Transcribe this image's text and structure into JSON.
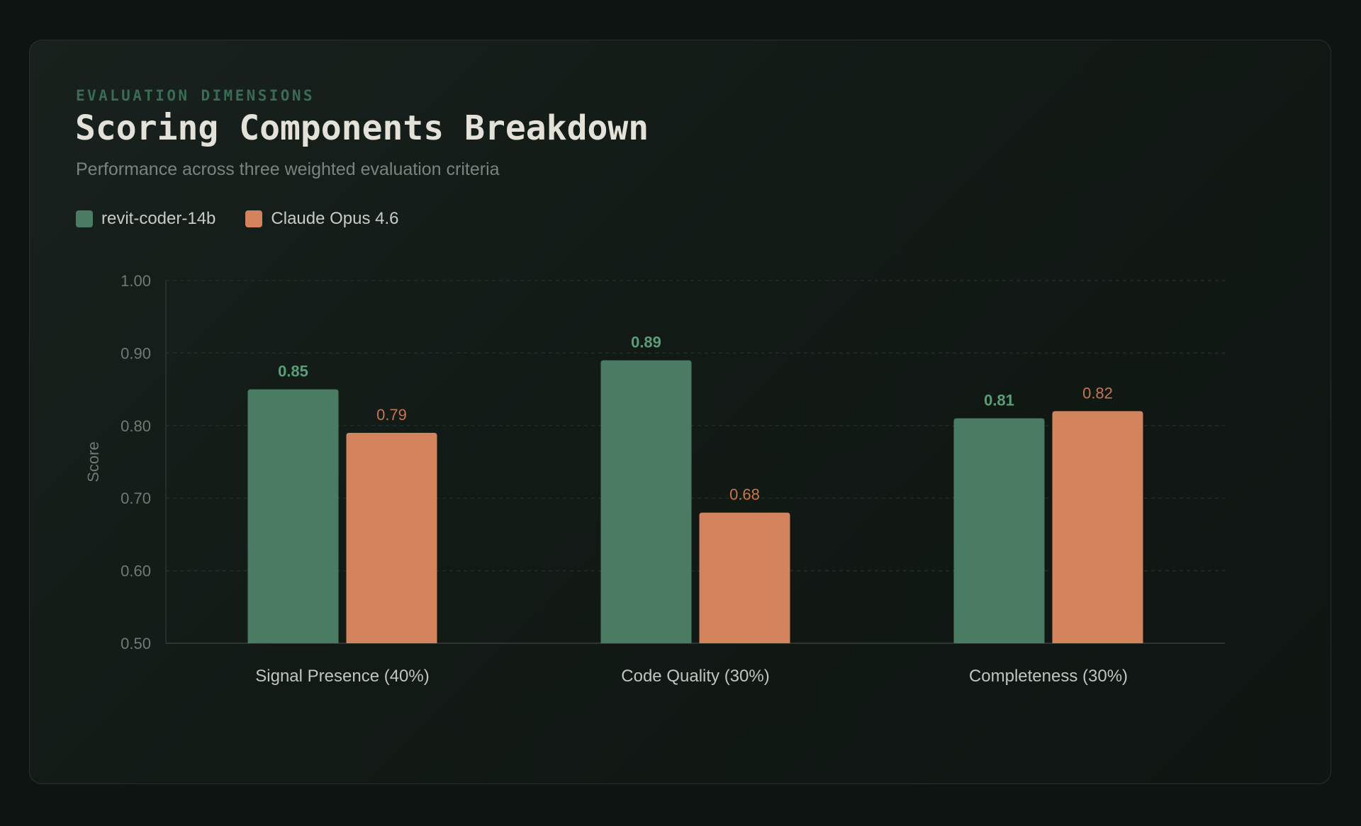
{
  "header": {
    "eyebrow": "EVALUATION DIMENSIONS",
    "title": "Scoring Components Breakdown",
    "subtitle": "Performance across three weighted evaluation criteria"
  },
  "legend": [
    {
      "label": "revit-coder-14b",
      "color": "#4a7c63"
    },
    {
      "label": "Claude Opus 4.6",
      "color": "#d4845c"
    }
  ],
  "chart_data": {
    "type": "bar",
    "title": "Scoring Components Breakdown",
    "subtitle": "Performance across three weighted evaluation criteria",
    "xlabel": "",
    "ylabel": "Score",
    "ylim": [
      0.5,
      1.0
    ],
    "yticks": [
      "0.50",
      "0.60",
      "0.70",
      "0.80",
      "0.90",
      "1.00"
    ],
    "grid": true,
    "legend_position": "top-left",
    "categories": [
      "Signal Presence (40%)",
      "Code Quality (30%)",
      "Completeness (30%)"
    ],
    "series": [
      {
        "name": "revit-coder-14b",
        "color": "#4a7c63",
        "label_color": "#5a9e78",
        "values": [
          0.85,
          0.89,
          0.81
        ],
        "labels": [
          "0.85",
          "0.89",
          "0.81"
        ]
      },
      {
        "name": "Claude Opus 4.6",
        "color": "#d4845c",
        "label_color": "#c7764e",
        "values": [
          0.79,
          0.68,
          0.82
        ],
        "labels": [
          "0.79",
          "0.68",
          "0.82"
        ]
      }
    ]
  }
}
